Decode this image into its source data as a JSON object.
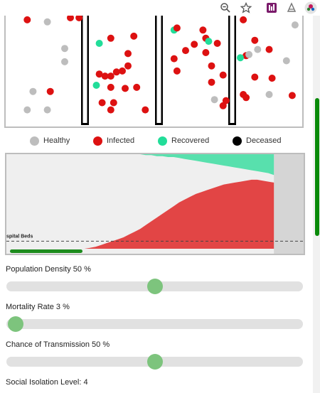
{
  "toolbar": {
    "icons": [
      "zoom-out-icon",
      "star-icon",
      "extension-icon",
      "pdf-extension-icon",
      "profile-avatar-icon"
    ]
  },
  "colors": {
    "healthy": "#bdbdbd",
    "infected": "#dd1111",
    "recovered": "#22dd99",
    "deceased": "#000000",
    "chart_infected": "#e24545",
    "chart_recovered": "#58e0ad",
    "chart_bg": "#efefef",
    "progress": "#1e8c1e",
    "slider_thumb": "#7dc47d"
  },
  "legend": [
    {
      "key": "healthy",
      "label": "Healthy"
    },
    {
      "key": "infected",
      "label": "Infected"
    },
    {
      "key": "recovered",
      "label": "Recovered"
    },
    {
      "key": "deceased",
      "label": "Deceased"
    }
  ],
  "chart": {
    "hospital_beds_label": "spital Beds",
    "hospital_beds_fraction": 0.08,
    "progress_fraction": 0.25,
    "elapsed_fraction": 0.9,
    "infected_curve": [
      0,
      0,
      0,
      0,
      0,
      0,
      0,
      0,
      0,
      0,
      0,
      0,
      0,
      0,
      0,
      0.01,
      0.02,
      0.04,
      0.06,
      0.08,
      0.1,
      0.12,
      0.15,
      0.18,
      0.21,
      0.25,
      0.29,
      0.33,
      0.37,
      0.41,
      0.45,
      0.49,
      0.52,
      0.55,
      0.58,
      0.6,
      0.62,
      0.64,
      0.66,
      0.68,
      0.69,
      0.7,
      0.71,
      0.72,
      0.73,
      0.73,
      0.72,
      0.71,
      0.7
    ],
    "recovered_curve": [
      0,
      0,
      0,
      0,
      0,
      0,
      0,
      0,
      0,
      0,
      0,
      0,
      0,
      0,
      0,
      0,
      0,
      0,
      0,
      0,
      0,
      0,
      0,
      0,
      0.0,
      0.01,
      0.01,
      0.02,
      0.02,
      0.03,
      0.03,
      0.04,
      0.05,
      0.06,
      0.07,
      0.08,
      0.09,
      0.1,
      0.11,
      0.12,
      0.13,
      0.14,
      0.15,
      0.16,
      0.17,
      0.18,
      0.19,
      0.2,
      0.22
    ]
  },
  "controls": {
    "density": {
      "label": "Population Density 50 %",
      "value": 0.5
    },
    "mortality": {
      "label": "Mortality Rate 3 %",
      "value": 0.03
    },
    "transmission": {
      "label": "Chance of Transmission 50 %",
      "value": 0.5
    },
    "isolation": {
      "label": "Social Isolation Level: 4"
    }
  },
  "particles": [
    [
      "infected",
      0.06,
      0.02
    ],
    [
      "healthy",
      0.13,
      0.04
    ],
    [
      "infected",
      0.21,
      0.0
    ],
    [
      "infected",
      0.24,
      0.0
    ],
    [
      "healthy",
      0.19,
      0.3
    ],
    [
      "healthy",
      0.19,
      0.43
    ],
    [
      "healthy",
      0.08,
      0.72
    ],
    [
      "infected",
      0.14,
      0.72
    ],
    [
      "healthy",
      0.06,
      0.9
    ],
    [
      "healthy",
      0.13,
      0.9
    ],
    [
      "infected",
      0.35,
      0.2
    ],
    [
      "recovered",
      0.31,
      0.25
    ],
    [
      "infected",
      0.43,
      0.18
    ],
    [
      "infected",
      0.41,
      0.35
    ],
    [
      "infected",
      0.41,
      0.47
    ],
    [
      "infected",
      0.31,
      0.55
    ],
    [
      "infected",
      0.33,
      0.57
    ],
    [
      "infected",
      0.35,
      0.57
    ],
    [
      "infected",
      0.37,
      0.53
    ],
    [
      "infected",
      0.39,
      0.52
    ],
    [
      "recovered",
      0.3,
      0.66
    ],
    [
      "infected",
      0.35,
      0.68
    ],
    [
      "infected",
      0.4,
      0.69
    ],
    [
      "infected",
      0.44,
      0.68
    ],
    [
      "infected",
      0.32,
      0.83
    ],
    [
      "infected",
      0.36,
      0.83
    ],
    [
      "infected",
      0.35,
      0.9
    ],
    [
      "infected",
      0.47,
      0.9
    ],
    [
      "recovered",
      0.57,
      0.12
    ],
    [
      "infected",
      0.58,
      0.1
    ],
    [
      "infected",
      0.67,
      0.12
    ],
    [
      "infected",
      0.68,
      0.2
    ],
    [
      "infected",
      0.64,
      0.26
    ],
    [
      "recovered",
      0.69,
      0.23
    ],
    [
      "infected",
      0.72,
      0.25
    ],
    [
      "infected",
      0.61,
      0.32
    ],
    [
      "infected",
      0.68,
      0.34
    ],
    [
      "infected",
      0.57,
      0.4
    ],
    [
      "infected",
      0.58,
      0.52
    ],
    [
      "infected",
      0.7,
      0.47
    ],
    [
      "infected",
      0.7,
      0.63
    ],
    [
      "infected",
      0.74,
      0.56
    ],
    [
      "healthy",
      0.71,
      0.8
    ],
    [
      "infected",
      0.75,
      0.81
    ],
    [
      "infected",
      0.74,
      0.86
    ],
    [
      "infected",
      0.81,
      0.02
    ],
    [
      "infected",
      0.85,
      0.22
    ],
    [
      "infected",
      0.82,
      0.37
    ],
    [
      "healthy",
      0.83,
      0.36
    ],
    [
      "healthy",
      0.86,
      0.31
    ],
    [
      "recovered",
      0.8,
      0.39
    ],
    [
      "infected",
      0.9,
      0.31
    ],
    [
      "healthy",
      0.99,
      0.07
    ],
    [
      "healthy",
      0.96,
      0.42
    ],
    [
      "infected",
      0.85,
      0.58
    ],
    [
      "infected",
      0.91,
      0.59
    ],
    [
      "infected",
      0.81,
      0.75
    ],
    [
      "infected",
      0.82,
      0.78
    ],
    [
      "healthy",
      0.9,
      0.75
    ],
    [
      "infected",
      0.98,
      0.76
    ]
  ]
}
